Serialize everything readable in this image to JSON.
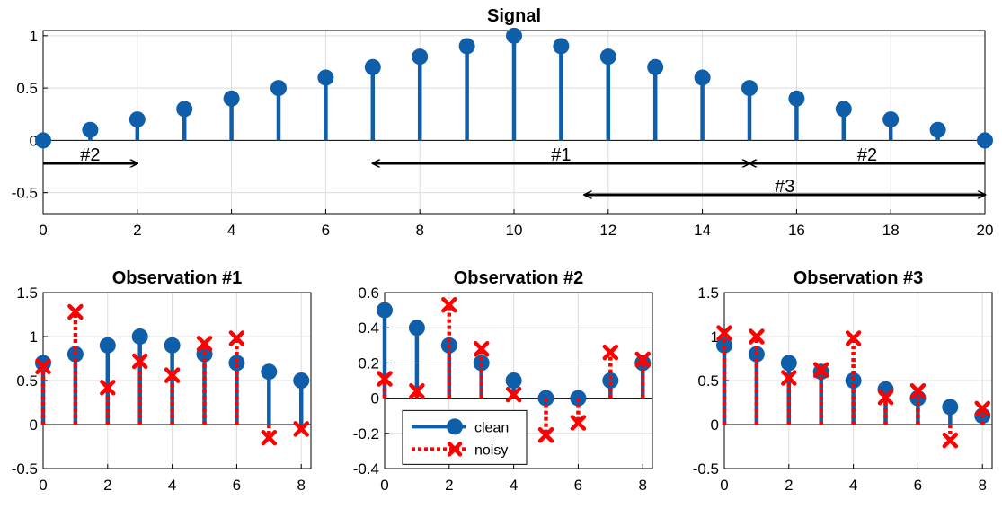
{
  "chart_data": [
    {
      "type": "stem",
      "title": "Signal",
      "xlim": [
        0,
        20
      ],
      "ylim": [
        -0.7,
        1.05
      ],
      "xticks": [
        0,
        2,
        4,
        6,
        8,
        10,
        12,
        14,
        16,
        18,
        20
      ],
      "yticks": [
        -0.5,
        0,
        0.5,
        1
      ],
      "ytick_labels": [
        "-0.5",
        "0",
        "0.5",
        "1"
      ],
      "grid": true,
      "series": [
        {
          "x": [
            0,
            1,
            2,
            3,
            4,
            5,
            6,
            7,
            8,
            9,
            10,
            11,
            12,
            13,
            14,
            15,
            16,
            17,
            18,
            19,
            20
          ],
          "values": [
            0,
            0.1,
            0.2,
            0.3,
            0.4,
            0.5,
            0.6,
            0.7,
            0.8,
            0.9,
            1.0,
            0.9,
            0.8,
            0.7,
            0.6,
            0.5,
            0.4,
            0.3,
            0.2,
            0.1,
            0
          ],
          "marker": "circle",
          "color": "#0F5EAA",
          "line": "solid"
        }
      ],
      "annotations": [
        {
          "label": "#2",
          "x_from": 0,
          "x_to": 2,
          "y": -0.22,
          "heads": "end"
        },
        {
          "label": "#1",
          "x_from": 7,
          "x_to": 15,
          "y": -0.22,
          "heads": "both"
        },
        {
          "label": "#2",
          "x_from": 15,
          "x_to": 20,
          "y": -0.22,
          "heads": "start"
        },
        {
          "label": "#3",
          "x_from": 11.5,
          "x_to": 20,
          "y": -0.52,
          "heads": "both"
        }
      ]
    },
    {
      "type": "stem",
      "title": "Observation #1",
      "xlim": [
        0,
        8.3
      ],
      "ylim": [
        -0.5,
        1.5
      ],
      "xticks": [
        0,
        2,
        4,
        6,
        8
      ],
      "yticks": [
        -0.5,
        0,
        0.5,
        1,
        1.5
      ],
      "ytick_labels": [
        "-0.5",
        "0",
        "0.5",
        "1",
        "1.5"
      ],
      "grid": true,
      "series": [
        {
          "name": "clean",
          "x": [
            0,
            1,
            2,
            3,
            4,
            5,
            6,
            7,
            8
          ],
          "values": [
            0.7,
            0.8,
            0.9,
            1.0,
            0.9,
            0.8,
            0.7,
            0.6,
            0.5
          ],
          "marker": "circle",
          "color": "#0F5EAA",
          "line": "solid"
        },
        {
          "name": "noisy",
          "x": [
            0,
            1,
            2,
            3,
            4,
            5,
            6,
            7,
            8
          ],
          "values": [
            0.66,
            1.28,
            0.42,
            0.72,
            0.56,
            0.92,
            0.98,
            -0.15,
            -0.05
          ],
          "marker": "x",
          "color": "#FF0000",
          "line": "dotted"
        }
      ]
    },
    {
      "type": "stem",
      "title": "Observation #2",
      "xlim": [
        0,
        8.3
      ],
      "ylim": [
        -0.4,
        0.6
      ],
      "xticks": [
        0,
        2,
        4,
        6,
        8
      ],
      "yticks": [
        -0.4,
        -0.2,
        0,
        0.2,
        0.4,
        0.6
      ],
      "ytick_labels": [
        "-0.4",
        "-0.2",
        "0",
        "0.2",
        "0.4",
        "0.6"
      ],
      "grid": true,
      "legend": {
        "placement": "bottom-left",
        "entries": [
          "clean",
          "noisy"
        ]
      },
      "series": [
        {
          "name": "clean",
          "x": [
            0,
            1,
            2,
            3,
            4,
            5,
            6,
            7,
            8
          ],
          "values": [
            0.5,
            0.4,
            0.3,
            0.2,
            0.1,
            0.0,
            0.0,
            0.1,
            0.2
          ],
          "marker": "circle",
          "color": "#0F5EAA",
          "line": "solid"
        },
        {
          "name": "noisy",
          "x": [
            0,
            1,
            2,
            3,
            4,
            5,
            6,
            7,
            8
          ],
          "values": [
            0.11,
            0.04,
            0.53,
            0.28,
            0.02,
            -0.21,
            -0.14,
            0.26,
            0.22
          ],
          "marker": "x",
          "color": "#FF0000",
          "line": "dotted"
        }
      ]
    },
    {
      "type": "stem",
      "title": "Observation #3",
      "xlim": [
        0,
        8.3
      ],
      "ylim": [
        -0.5,
        1.5
      ],
      "xticks": [
        0,
        2,
        4,
        6,
        8
      ],
      "yticks": [
        -0.5,
        0,
        0.5,
        1,
        1.5
      ],
      "ytick_labels": [
        "-0.5",
        "0",
        "0.5",
        "1",
        "1.5"
      ],
      "grid": true,
      "series": [
        {
          "name": "clean",
          "x": [
            0,
            1,
            2,
            3,
            4,
            5,
            6,
            7,
            8
          ],
          "values": [
            0.9,
            0.8,
            0.7,
            0.6,
            0.5,
            0.4,
            0.3,
            0.2,
            0.1
          ],
          "marker": "circle",
          "color": "#0F5EAA",
          "line": "solid"
        },
        {
          "name": "noisy",
          "x": [
            0,
            1,
            2,
            3,
            4,
            5,
            6,
            7,
            8
          ],
          "values": [
            1.04,
            1.0,
            0.53,
            0.62,
            0.98,
            0.31,
            0.38,
            -0.18,
            0.18
          ],
          "marker": "x",
          "color": "#FF0000",
          "line": "dotted"
        }
      ]
    }
  ]
}
